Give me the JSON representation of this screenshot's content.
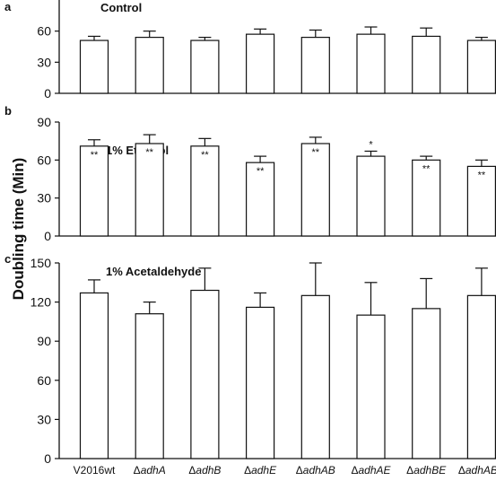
{
  "chart_data": {
    "type": "bar",
    "ylabel": "Doubling time (Min)",
    "categories": [
      "V2016wt",
      "adhA",
      "adhB",
      "adhE",
      "adhAB",
      "adhAE",
      "adhBE",
      "adhABE"
    ],
    "category_prefix": [
      "",
      "Δ",
      "Δ",
      "Δ",
      "Δ",
      "Δ",
      "Δ",
      "Δ"
    ],
    "bar_color": "#ffffff",
    "edge_color": "#111111",
    "grid": false,
    "panels": [
      {
        "letter": "a",
        "title": "Control",
        "ylim": [
          0,
          90
        ],
        "yticks": [
          0,
          30,
          60
        ],
        "values": [
          51,
          54,
          51,
          57,
          54,
          57,
          55,
          51
        ],
        "errors": [
          4,
          6,
          3,
          5,
          7,
          7,
          8,
          3
        ],
        "marks": [
          "",
          "",
          "",
          "",
          "",
          "",
          "",
          ""
        ]
      },
      {
        "letter": "b",
        "title": "1% Ethanol",
        "ylim": [
          0,
          90
        ],
        "yticks": [
          0,
          30,
          60,
          90
        ],
        "values": [
          71,
          73,
          71,
          58,
          73,
          63,
          60,
          55
        ],
        "errors": [
          5,
          7,
          6,
          5,
          5,
          4,
          3,
          5
        ],
        "marks": [
          "**",
          "**",
          "**",
          "**",
          "**",
          "*",
          "**",
          "**"
        ]
      },
      {
        "letter": "c",
        "title": "1% Acetaldehyde",
        "ylim": [
          0,
          150
        ],
        "yticks": [
          0,
          30,
          60,
          90,
          120,
          150
        ],
        "values": [
          127,
          111,
          129,
          116,
          125,
          110,
          115,
          125
        ],
        "errors": [
          10,
          9,
          17,
          11,
          25,
          25,
          23,
          21
        ],
        "marks": [
          "",
          "",
          "",
          "",
          "",
          "",
          "",
          ""
        ]
      }
    ]
  }
}
